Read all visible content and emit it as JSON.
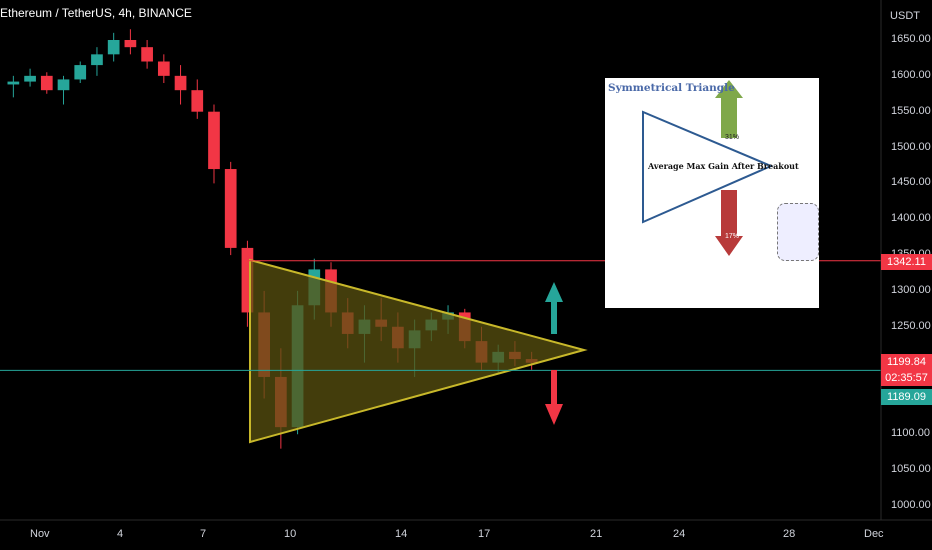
{
  "symbol": "Ethereum / TetherUS, 4h, BINANCE",
  "axis_unit": "USDT",
  "colors": {
    "up": "#26a69a",
    "down": "#f23645",
    "triangle_fill": "#5a5210",
    "triangle_stroke": "#c8b82a",
    "resistance": "#f23645",
    "support": "#26a69a",
    "arrow_up": "#26a69a",
    "arrow_down": "#f23645"
  },
  "price_ticks": [
    "1650.00",
    "1600.00",
    "1550.00",
    "1500.00",
    "1450.00",
    "1400.00",
    "1350.00",
    "1300.00",
    "1250.00",
    "1200.00",
    "1150.00",
    "1100.00",
    "1050.00",
    "1000.00"
  ],
  "date_ticks": [
    "Nov",
    "4",
    "7",
    "10",
    "14",
    "17",
    "21",
    "24",
    "28",
    "Dec"
  ],
  "price_tags": {
    "resistance": "1342.11",
    "current": "1199.84",
    "countdown": "02:35:57",
    "support": "1189.09"
  },
  "inset": {
    "title": "Symmetrical Triangle",
    "label": "Average Max Gain After Breakout",
    "up_pct": "31%",
    "down_pct": "17%"
  },
  "chart_data": {
    "type": "candlestick",
    "price_range": [
      1000,
      1660
    ],
    "resistance": 1342.11,
    "support": 1189.09,
    "ohlc_sample": [
      [
        1588,
        1600,
        1570,
        1592
      ],
      [
        1592,
        1610,
        1585,
        1600
      ],
      [
        1600,
        1605,
        1575,
        1580
      ],
      [
        1580,
        1600,
        1560,
        1595
      ],
      [
        1595,
        1620,
        1590,
        1615
      ],
      [
        1615,
        1640,
        1600,
        1630
      ],
      [
        1630,
        1660,
        1620,
        1650
      ],
      [
        1650,
        1665,
        1630,
        1640
      ],
      [
        1640,
        1650,
        1610,
        1620
      ],
      [
        1620,
        1630,
        1590,
        1600
      ],
      [
        1600,
        1615,
        1560,
        1580
      ],
      [
        1580,
        1595,
        1540,
        1550
      ],
      [
        1550,
        1560,
        1450,
        1470
      ],
      [
        1470,
        1480,
        1350,
        1360
      ],
      [
        1360,
        1370,
        1250,
        1270
      ],
      [
        1270,
        1300,
        1150,
        1180
      ],
      [
        1180,
        1220,
        1080,
        1110
      ],
      [
        1110,
        1300,
        1100,
        1280
      ],
      [
        1280,
        1345,
        1260,
        1330
      ],
      [
        1330,
        1340,
        1250,
        1270
      ],
      [
        1270,
        1290,
        1220,
        1240
      ],
      [
        1240,
        1280,
        1200,
        1260
      ],
      [
        1260,
        1290,
        1230,
        1250
      ],
      [
        1250,
        1270,
        1200,
        1220
      ],
      [
        1220,
        1260,
        1180,
        1245
      ],
      [
        1245,
        1270,
        1230,
        1260
      ],
      [
        1260,
        1280,
        1240,
        1270
      ],
      [
        1270,
        1275,
        1220,
        1230
      ],
      [
        1230,
        1250,
        1190,
        1200
      ],
      [
        1200,
        1225,
        1185,
        1215
      ],
      [
        1215,
        1230,
        1195,
        1205
      ],
      [
        1205,
        1215,
        1190,
        1199.84
      ]
    ]
  }
}
